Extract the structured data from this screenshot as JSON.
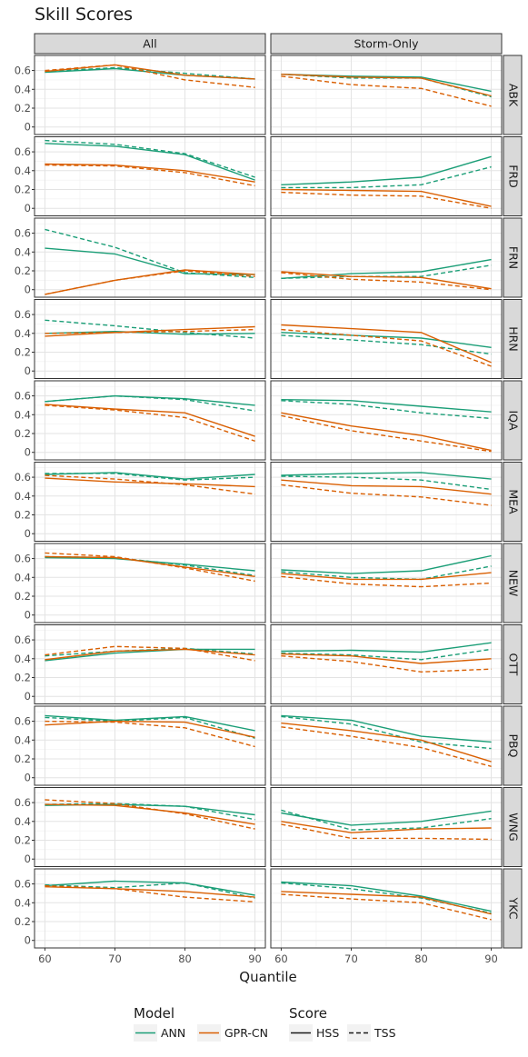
{
  "chart_data": {
    "type": "line",
    "title": "Skill Scores",
    "xlabel": "Quantile",
    "ylabel": "",
    "x": [
      60,
      70,
      80,
      90
    ],
    "x_ticks": [
      "60",
      "70",
      "80",
      "90"
    ],
    "ylim": [
      -0.08,
      0.76
    ],
    "y_ticks": [
      "0",
      "0.2",
      "0.4",
      "0.6"
    ],
    "column_facets": [
      "All",
      "Storm-Only"
    ],
    "row_facets": [
      "ABK",
      "FRD",
      "FRN",
      "HRN",
      "IQA",
      "MEA",
      "NEW",
      "OTT",
      "PBQ",
      "WNG",
      "YKC"
    ],
    "grid": true,
    "legend_position": "bottom",
    "legend": {
      "model_title": "Model",
      "model_entries": [
        {
          "name": "ANN",
          "color": "#1b9e77"
        },
        {
          "name": "GPR-CN",
          "color": "#d95f02"
        }
      ],
      "score_title": "Score",
      "score_entries": [
        {
          "name": "HSS",
          "linestyle": "solid"
        },
        {
          "name": "TSS",
          "linestyle": "dashed"
        }
      ]
    },
    "series": [
      {
        "station": "ABK",
        "facet": "All",
        "model": "ANN",
        "score": "HSS",
        "values": [
          0.58,
          0.62,
          0.55,
          0.51
        ]
      },
      {
        "station": "ABK",
        "facet": "All",
        "model": "ANN",
        "score": "TSS",
        "values": [
          0.59,
          0.63,
          0.57,
          0.51
        ]
      },
      {
        "station": "ABK",
        "facet": "All",
        "model": "GPR-CN",
        "score": "HSS",
        "values": [
          0.59,
          0.66,
          0.55,
          0.51
        ]
      },
      {
        "station": "ABK",
        "facet": "All",
        "model": "GPR-CN",
        "score": "TSS",
        "values": [
          0.6,
          0.66,
          0.5,
          0.42
        ]
      },
      {
        "station": "ABK",
        "facet": "Storm-Only",
        "model": "ANN",
        "score": "HSS",
        "values": [
          0.56,
          0.54,
          0.53,
          0.38
        ]
      },
      {
        "station": "ABK",
        "facet": "Storm-Only",
        "model": "ANN",
        "score": "TSS",
        "values": [
          0.56,
          0.52,
          0.52,
          0.32
        ]
      },
      {
        "station": "ABK",
        "facet": "Storm-Only",
        "model": "GPR-CN",
        "score": "HSS",
        "values": [
          0.56,
          0.53,
          0.52,
          0.33
        ]
      },
      {
        "station": "ABK",
        "facet": "Storm-Only",
        "model": "GPR-CN",
        "score": "TSS",
        "values": [
          0.54,
          0.45,
          0.41,
          0.22
        ]
      },
      {
        "station": "FRD",
        "facet": "All",
        "model": "ANN",
        "score": "HSS",
        "values": [
          0.69,
          0.66,
          0.57,
          0.3
        ]
      },
      {
        "station": "FRD",
        "facet": "All",
        "model": "ANN",
        "score": "TSS",
        "values": [
          0.72,
          0.68,
          0.58,
          0.33
        ]
      },
      {
        "station": "FRD",
        "facet": "All",
        "model": "GPR-CN",
        "score": "HSS",
        "values": [
          0.47,
          0.46,
          0.4,
          0.28
        ]
      },
      {
        "station": "FRD",
        "facet": "All",
        "model": "GPR-CN",
        "score": "TSS",
        "values": [
          0.46,
          0.45,
          0.38,
          0.24
        ]
      },
      {
        "station": "FRD",
        "facet": "Storm-Only",
        "model": "ANN",
        "score": "HSS",
        "values": [
          0.25,
          0.28,
          0.33,
          0.55
        ]
      },
      {
        "station": "FRD",
        "facet": "Storm-Only",
        "model": "ANN",
        "score": "TSS",
        "values": [
          0.22,
          0.22,
          0.25,
          0.44
        ]
      },
      {
        "station": "FRD",
        "facet": "Storm-Only",
        "model": "GPR-CN",
        "score": "HSS",
        "values": [
          0.2,
          0.19,
          0.18,
          0.02
        ]
      },
      {
        "station": "FRD",
        "facet": "Storm-Only",
        "model": "GPR-CN",
        "score": "TSS",
        "values": [
          0.17,
          0.14,
          0.13,
          0.0
        ]
      },
      {
        "station": "FRN",
        "facet": "All",
        "model": "ANN",
        "score": "HSS",
        "values": [
          0.44,
          0.38,
          0.17,
          0.16
        ]
      },
      {
        "station": "FRN",
        "facet": "All",
        "model": "ANN",
        "score": "TSS",
        "values": [
          0.64,
          0.45,
          0.18,
          0.13
        ]
      },
      {
        "station": "FRN",
        "facet": "All",
        "model": "GPR-CN",
        "score": "HSS",
        "values": [
          -0.05,
          0.1,
          0.21,
          0.16
        ]
      },
      {
        "station": "FRN",
        "facet": "All",
        "model": "GPR-CN",
        "score": "TSS",
        "values": [
          -0.05,
          0.1,
          0.2,
          0.14
        ]
      },
      {
        "station": "FRN",
        "facet": "Storm-Only",
        "model": "ANN",
        "score": "HSS",
        "values": [
          0.12,
          0.17,
          0.19,
          0.32
        ]
      },
      {
        "station": "FRN",
        "facet": "Storm-Only",
        "model": "ANN",
        "score": "TSS",
        "values": [
          0.12,
          0.14,
          0.14,
          0.26
        ]
      },
      {
        "station": "FRN",
        "facet": "Storm-Only",
        "model": "GPR-CN",
        "score": "HSS",
        "values": [
          0.19,
          0.14,
          0.13,
          0.01
        ]
      },
      {
        "station": "FRN",
        "facet": "Storm-Only",
        "model": "GPR-CN",
        "score": "TSS",
        "values": [
          0.18,
          0.11,
          0.08,
          0.0
        ]
      },
      {
        "station": "HRN",
        "facet": "All",
        "model": "ANN",
        "score": "HSS",
        "values": [
          0.4,
          0.42,
          0.39,
          0.4
        ]
      },
      {
        "station": "HRN",
        "facet": "All",
        "model": "ANN",
        "score": "TSS",
        "values": [
          0.54,
          0.48,
          0.41,
          0.35
        ]
      },
      {
        "station": "HRN",
        "facet": "All",
        "model": "GPR-CN",
        "score": "HSS",
        "values": [
          0.37,
          0.41,
          0.44,
          0.47
        ]
      },
      {
        "station": "HRN",
        "facet": "All",
        "model": "GPR-CN",
        "score": "TSS",
        "values": [
          0.4,
          0.41,
          0.42,
          0.44
        ]
      },
      {
        "station": "HRN",
        "facet": "Storm-Only",
        "model": "ANN",
        "score": "HSS",
        "values": [
          0.41,
          0.38,
          0.35,
          0.25
        ]
      },
      {
        "station": "HRN",
        "facet": "Storm-Only",
        "model": "ANN",
        "score": "TSS",
        "values": [
          0.38,
          0.33,
          0.28,
          0.18
        ]
      },
      {
        "station": "HRN",
        "facet": "Storm-Only",
        "model": "GPR-CN",
        "score": "HSS",
        "values": [
          0.49,
          0.45,
          0.41,
          0.09
        ]
      },
      {
        "station": "HRN",
        "facet": "Storm-Only",
        "model": "GPR-CN",
        "score": "TSS",
        "values": [
          0.44,
          0.38,
          0.32,
          0.05
        ]
      },
      {
        "station": "IQA",
        "facet": "All",
        "model": "ANN",
        "score": "HSS",
        "values": [
          0.54,
          0.6,
          0.57,
          0.5
        ]
      },
      {
        "station": "IQA",
        "facet": "All",
        "model": "ANN",
        "score": "TSS",
        "values": [
          0.54,
          0.6,
          0.56,
          0.44
        ]
      },
      {
        "station": "IQA",
        "facet": "All",
        "model": "GPR-CN",
        "score": "HSS",
        "values": [
          0.51,
          0.46,
          0.42,
          0.17
        ]
      },
      {
        "station": "IQA",
        "facet": "All",
        "model": "GPR-CN",
        "score": "TSS",
        "values": [
          0.5,
          0.45,
          0.37,
          0.12
        ]
      },
      {
        "station": "IQA",
        "facet": "Storm-Only",
        "model": "ANN",
        "score": "HSS",
        "values": [
          0.56,
          0.55,
          0.49,
          0.43
        ]
      },
      {
        "station": "IQA",
        "facet": "Storm-Only",
        "model": "ANN",
        "score": "TSS",
        "values": [
          0.55,
          0.51,
          0.42,
          0.36
        ]
      },
      {
        "station": "IQA",
        "facet": "Storm-Only",
        "model": "GPR-CN",
        "score": "HSS",
        "values": [
          0.42,
          0.28,
          0.18,
          0.02
        ]
      },
      {
        "station": "IQA",
        "facet": "Storm-Only",
        "model": "GPR-CN",
        "score": "TSS",
        "values": [
          0.39,
          0.23,
          0.12,
          0.01
        ]
      },
      {
        "station": "MEA",
        "facet": "All",
        "model": "ANN",
        "score": "HSS",
        "values": [
          0.63,
          0.65,
          0.58,
          0.63
        ]
      },
      {
        "station": "MEA",
        "facet": "All",
        "model": "ANN",
        "score": "TSS",
        "values": [
          0.64,
          0.64,
          0.57,
          0.6
        ]
      },
      {
        "station": "MEA",
        "facet": "All",
        "model": "GPR-CN",
        "score": "HSS",
        "values": [
          0.59,
          0.55,
          0.53,
          0.5
        ]
      },
      {
        "station": "MEA",
        "facet": "All",
        "model": "GPR-CN",
        "score": "TSS",
        "values": [
          0.62,
          0.58,
          0.52,
          0.42
        ]
      },
      {
        "station": "MEA",
        "facet": "Storm-Only",
        "model": "ANN",
        "score": "HSS",
        "values": [
          0.62,
          0.64,
          0.65,
          0.58
        ]
      },
      {
        "station": "MEA",
        "facet": "Storm-Only",
        "model": "ANN",
        "score": "TSS",
        "values": [
          0.61,
          0.6,
          0.57,
          0.47
        ]
      },
      {
        "station": "MEA",
        "facet": "Storm-Only",
        "model": "GPR-CN",
        "score": "HSS",
        "values": [
          0.57,
          0.51,
          0.5,
          0.42
        ]
      },
      {
        "station": "MEA",
        "facet": "Storm-Only",
        "model": "GPR-CN",
        "score": "TSS",
        "values": [
          0.52,
          0.43,
          0.39,
          0.3
        ]
      },
      {
        "station": "NEW",
        "facet": "All",
        "model": "ANN",
        "score": "HSS",
        "values": [
          0.61,
          0.6,
          0.54,
          0.47
        ]
      },
      {
        "station": "NEW",
        "facet": "All",
        "model": "ANN",
        "score": "TSS",
        "values": [
          0.62,
          0.61,
          0.53,
          0.42
        ]
      },
      {
        "station": "NEW",
        "facet": "All",
        "model": "GPR-CN",
        "score": "HSS",
        "values": [
          0.62,
          0.61,
          0.51,
          0.41
        ]
      },
      {
        "station": "NEW",
        "facet": "All",
        "model": "GPR-CN",
        "score": "TSS",
        "values": [
          0.66,
          0.62,
          0.5,
          0.36
        ]
      },
      {
        "station": "NEW",
        "facet": "Storm-Only",
        "model": "ANN",
        "score": "HSS",
        "values": [
          0.48,
          0.44,
          0.47,
          0.63
        ]
      },
      {
        "station": "NEW",
        "facet": "Storm-Only",
        "model": "ANN",
        "score": "TSS",
        "values": [
          0.46,
          0.4,
          0.38,
          0.52
        ]
      },
      {
        "station": "NEW",
        "facet": "Storm-Only",
        "model": "GPR-CN",
        "score": "HSS",
        "values": [
          0.44,
          0.38,
          0.38,
          0.45
        ]
      },
      {
        "station": "NEW",
        "facet": "Storm-Only",
        "model": "GPR-CN",
        "score": "TSS",
        "values": [
          0.41,
          0.33,
          0.3,
          0.34
        ]
      },
      {
        "station": "OTT",
        "facet": "All",
        "model": "ANN",
        "score": "HSS",
        "values": [
          0.38,
          0.46,
          0.5,
          0.5
        ]
      },
      {
        "station": "OTT",
        "facet": "All",
        "model": "ANN",
        "score": "TSS",
        "values": [
          0.43,
          0.48,
          0.51,
          0.45
        ]
      },
      {
        "station": "OTT",
        "facet": "All",
        "model": "GPR-CN",
        "score": "HSS",
        "values": [
          0.39,
          0.48,
          0.5,
          0.44
        ]
      },
      {
        "station": "OTT",
        "facet": "All",
        "model": "GPR-CN",
        "score": "TSS",
        "values": [
          0.44,
          0.53,
          0.51,
          0.38
        ]
      },
      {
        "station": "OTT",
        "facet": "Storm-Only",
        "model": "ANN",
        "score": "HSS",
        "values": [
          0.48,
          0.49,
          0.47,
          0.57
        ]
      },
      {
        "station": "OTT",
        "facet": "Storm-Only",
        "model": "ANN",
        "score": "TSS",
        "values": [
          0.46,
          0.44,
          0.39,
          0.5
        ]
      },
      {
        "station": "OTT",
        "facet": "Storm-Only",
        "model": "GPR-CN",
        "score": "HSS",
        "values": [
          0.45,
          0.43,
          0.35,
          0.4
        ]
      },
      {
        "station": "OTT",
        "facet": "Storm-Only",
        "model": "GPR-CN",
        "score": "TSS",
        "values": [
          0.43,
          0.37,
          0.26,
          0.29
        ]
      },
      {
        "station": "PBQ",
        "facet": "All",
        "model": "ANN",
        "score": "HSS",
        "values": [
          0.66,
          0.61,
          0.65,
          0.5
        ]
      },
      {
        "station": "PBQ",
        "facet": "All",
        "model": "ANN",
        "score": "TSS",
        "values": [
          0.64,
          0.6,
          0.64,
          0.42
        ]
      },
      {
        "station": "PBQ",
        "facet": "All",
        "model": "GPR-CN",
        "score": "HSS",
        "values": [
          0.56,
          0.6,
          0.59,
          0.43
        ]
      },
      {
        "station": "PBQ",
        "facet": "All",
        "model": "GPR-CN",
        "score": "TSS",
        "values": [
          0.6,
          0.59,
          0.53,
          0.33
        ]
      },
      {
        "station": "PBQ",
        "facet": "Storm-Only",
        "model": "ANN",
        "score": "HSS",
        "values": [
          0.66,
          0.61,
          0.44,
          0.38
        ]
      },
      {
        "station": "PBQ",
        "facet": "Storm-Only",
        "model": "ANN",
        "score": "TSS",
        "values": [
          0.65,
          0.57,
          0.38,
          0.31
        ]
      },
      {
        "station": "PBQ",
        "facet": "Storm-Only",
        "model": "GPR-CN",
        "score": "HSS",
        "values": [
          0.58,
          0.5,
          0.4,
          0.17
        ]
      },
      {
        "station": "PBQ",
        "facet": "Storm-Only",
        "model": "GPR-CN",
        "score": "TSS",
        "values": [
          0.54,
          0.44,
          0.32,
          0.12
        ]
      },
      {
        "station": "WNG",
        "facet": "All",
        "model": "ANN",
        "score": "HSS",
        "values": [
          0.57,
          0.58,
          0.56,
          0.47
        ]
      },
      {
        "station": "WNG",
        "facet": "All",
        "model": "ANN",
        "score": "TSS",
        "values": [
          0.58,
          0.59,
          0.56,
          0.42
        ]
      },
      {
        "station": "WNG",
        "facet": "All",
        "model": "GPR-CN",
        "score": "HSS",
        "values": [
          0.58,
          0.57,
          0.49,
          0.37
        ]
      },
      {
        "station": "WNG",
        "facet": "All",
        "model": "GPR-CN",
        "score": "TSS",
        "values": [
          0.63,
          0.59,
          0.48,
          0.32
        ]
      },
      {
        "station": "WNG",
        "facet": "Storm-Only",
        "model": "ANN",
        "score": "HSS",
        "values": [
          0.49,
          0.36,
          0.4,
          0.51
        ]
      },
      {
        "station": "WNG",
        "facet": "Storm-Only",
        "model": "ANN",
        "score": "TSS",
        "values": [
          0.52,
          0.31,
          0.33,
          0.43
        ]
      },
      {
        "station": "WNG",
        "facet": "Storm-Only",
        "model": "GPR-CN",
        "score": "HSS",
        "values": [
          0.4,
          0.28,
          0.32,
          0.33
        ]
      },
      {
        "station": "WNG",
        "facet": "Storm-Only",
        "model": "GPR-CN",
        "score": "TSS",
        "values": [
          0.37,
          0.22,
          0.22,
          0.21
        ]
      },
      {
        "station": "YKC",
        "facet": "All",
        "model": "ANN",
        "score": "HSS",
        "values": [
          0.58,
          0.63,
          0.61,
          0.48
        ]
      },
      {
        "station": "YKC",
        "facet": "All",
        "model": "ANN",
        "score": "TSS",
        "values": [
          0.59,
          0.56,
          0.61,
          0.45
        ]
      },
      {
        "station": "YKC",
        "facet": "All",
        "model": "GPR-CN",
        "score": "HSS",
        "values": [
          0.57,
          0.55,
          0.52,
          0.46
        ]
      },
      {
        "station": "YKC",
        "facet": "All",
        "model": "GPR-CN",
        "score": "TSS",
        "values": [
          0.58,
          0.55,
          0.46,
          0.41
        ]
      },
      {
        "station": "YKC",
        "facet": "Storm-Only",
        "model": "ANN",
        "score": "HSS",
        "values": [
          0.62,
          0.58,
          0.47,
          0.31
        ]
      },
      {
        "station": "YKC",
        "facet": "Storm-Only",
        "model": "ANN",
        "score": "TSS",
        "values": [
          0.61,
          0.55,
          0.45,
          0.29
        ]
      },
      {
        "station": "YKC",
        "facet": "Storm-Only",
        "model": "GPR-CN",
        "score": "HSS",
        "values": [
          0.52,
          0.49,
          0.46,
          0.28
        ]
      },
      {
        "station": "YKC",
        "facet": "Storm-Only",
        "model": "GPR-CN",
        "score": "TSS",
        "values": [
          0.49,
          0.44,
          0.4,
          0.22
        ]
      }
    ]
  }
}
